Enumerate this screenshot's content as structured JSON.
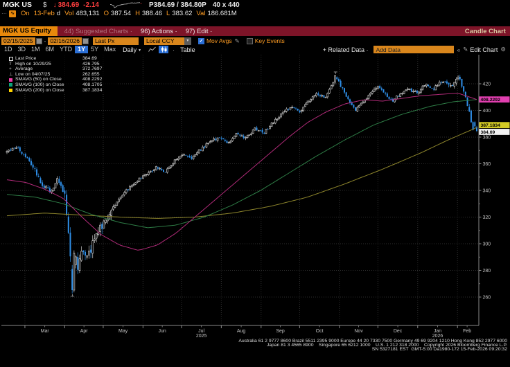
{
  "header": {
    "ticker": "MGK US",
    "currency_symbol": "$",
    "last_price": "384.69",
    "change": "-2.14",
    "bid_ask": "P384.69 / 384.80P",
    "size": "40 x 440",
    "session": {
      "prefix": "On",
      "date": "13-Feb",
      "suffix": "d",
      "vol_label": "Vol",
      "vol": "483,131",
      "o_label": "O",
      "open": "387.54",
      "h_label": "H",
      "high": "388.46",
      "l_label": "L",
      "low": "383.62",
      "val_label": "Val",
      "val": "186.681M"
    }
  },
  "icons": {
    "down_arrow": "↓",
    "dots": "⋯",
    "chart_glyph": "∿",
    "dropdown": "▼",
    "small_dropdown": "▾",
    "pencil": "✎",
    "gear": "⚙",
    "chevrons": "«",
    "check": "✓",
    "dot": "·"
  },
  "menubar": {
    "security_tab": "MGK US Equity",
    "suggested_charts": "44) Suggested Charts ·",
    "actions": "96) Actions ·",
    "edit": "97) Edit ·",
    "chart_type": "Candle Chart"
  },
  "toolbar": {
    "date_from": "02/15/2025",
    "date_to": "02/16/2026",
    "price_field": "Last Px",
    "currency": "Local CCY",
    "mov_avgs_label": "Mov Avgs",
    "key_events_label": "Key Events",
    "periods": [
      "1D",
      "3D",
      "1M",
      "6M",
      "YTD",
      "1Y",
      "5Y",
      "Max"
    ],
    "active_period": "1Y",
    "frequency": "Daily",
    "table_label": "Table",
    "related_data": "+ Related Data ·",
    "add_data_placeholder": "Add Data",
    "edit_chart": "Edit Chart"
  },
  "legend": {
    "rows": [
      {
        "marker": "square-hollow",
        "color": "#e8e8e8",
        "label": "Last Price",
        "value": "384.69"
      },
      {
        "marker": "glyph-high",
        "glyph": "T",
        "label": "High on 10/29/25",
        "value": "426.795"
      },
      {
        "marker": "glyph-avg",
        "glyph": "+",
        "label": "Average",
        "value": "372.7697"
      },
      {
        "marker": "glyph-low",
        "glyph": "⊥",
        "label": "Low on 04/07/25",
        "value": "262.655"
      },
      {
        "marker": "square",
        "color": "#f03ea8",
        "label": "SMAVG (50)  on Close",
        "value": "408.2292"
      },
      {
        "marker": "square",
        "color": "#0aa37a",
        "label": "SMAVG (100)  on Close",
        "value": "408.1705"
      },
      {
        "marker": "square",
        "color": "#ffd400",
        "label": "SMAVG (200)  on Close",
        "value": "387.1834"
      }
    ]
  },
  "chart_data": {
    "type": "candlestick",
    "title": "MGK US Equity 1Y Daily Candle Chart",
    "date_range": {
      "start": "02/15/2025",
      "end": "02/16/2026"
    },
    "trading_days": 253,
    "ylim": [
      233,
      440
    ],
    "y_ticks": [
      260,
      280,
      300,
      320,
      340,
      360,
      380,
      400,
      420
    ],
    "x_month_labels": [
      "Mar",
      "Apr",
      "May",
      "Jun",
      "Jul",
      "Aug",
      "Sep",
      "Oct",
      "Nov",
      "Dec",
      "Jan",
      "Feb"
    ],
    "year_labels": [
      {
        "text": "2025",
        "month_index": 4
      },
      {
        "text": "2026",
        "month_index": 10
      }
    ],
    "key_points": {
      "last_price": 384.69,
      "day_open": 387.54,
      "day_high": 388.46,
      "day_low": 383.62,
      "high": {
        "date": "10/29/25",
        "value": 426.795,
        "t": 0.6995
      },
      "low": {
        "date": "04/07/25",
        "value": 262.655,
        "t": 0.1393
      },
      "average": 372.7697,
      "sma50": 408.2292,
      "sma100": 408.1705,
      "sma200": 387.1834
    },
    "close_trend_anchors": [
      [
        0,
        369
      ],
      [
        0.0191,
        373
      ],
      [
        0.0383,
        366
      ],
      [
        0.0574,
        357
      ],
      [
        0.0738,
        345
      ],
      [
        0.0929,
        339
      ],
      [
        0.1066,
        348
      ],
      [
        0.123,
        338
      ],
      [
        0.1284,
        318
      ],
      [
        0.1339,
        296
      ],
      [
        0.1393,
        264
      ],
      [
        0.1448,
        293
      ],
      [
        0.1503,
        281
      ],
      [
        0.1612,
        297
      ],
      [
        0.1694,
        288
      ],
      [
        0.1831,
        300
      ],
      [
        0.1995,
        312
      ],
      [
        0.2186,
        322
      ],
      [
        0.2377,
        334
      ],
      [
        0.2568,
        341
      ],
      [
        0.2787,
        348
      ],
      [
        0.2978,
        352
      ],
      [
        0.3169,
        357
      ],
      [
        0.3361,
        354
      ],
      [
        0.3552,
        362
      ],
      [
        0.3743,
        367
      ],
      [
        0.3934,
        364
      ],
      [
        0.4126,
        371
      ],
      [
        0.4317,
        376
      ],
      [
        0.4508,
        380
      ],
      [
        0.4699,
        375
      ],
      [
        0.4891,
        383
      ],
      [
        0.5082,
        379
      ],
      [
        0.5273,
        386
      ],
      [
        0.5464,
        383
      ],
      [
        0.5656,
        391
      ],
      [
        0.5847,
        397
      ],
      [
        0.6038,
        403
      ],
      [
        0.623,
        399
      ],
      [
        0.6421,
        407
      ],
      [
        0.6612,
        413
      ],
      [
        0.6776,
        409
      ],
      [
        0.694,
        420
      ],
      [
        0.6995,
        425
      ],
      [
        0.7131,
        417
      ],
      [
        0.724,
        409
      ],
      [
        0.7404,
        400
      ],
      [
        0.7541,
        405
      ],
      [
        0.7705,
        412
      ],
      [
        0.7896,
        418
      ],
      [
        0.8033,
        413
      ],
      [
        0.8197,
        407
      ],
      [
        0.8361,
        412
      ],
      [
        0.8525,
        416
      ],
      [
        0.8743,
        413
      ],
      [
        0.8907,
        420
      ],
      [
        0.9071,
        416
      ],
      [
        0.9262,
        422
      ],
      [
        0.9454,
        419
      ],
      [
        0.9617,
        424
      ],
      [
        0.9727,
        415
      ],
      [
        0.9836,
        399
      ],
      [
        0.9918,
        385
      ],
      [
        1,
        384.7
      ]
    ],
    "sma50_anchors": [
      [
        0,
        348
      ],
      [
        0.04,
        346
      ],
      [
        0.08,
        341
      ],
      [
        0.12,
        334
      ],
      [
        0.16,
        320
      ],
      [
        0.2,
        307
      ],
      [
        0.24,
        299
      ],
      [
        0.28,
        295
      ],
      [
        0.32,
        299
      ],
      [
        0.36,
        308
      ],
      [
        0.4,
        320
      ],
      [
        0.44,
        332
      ],
      [
        0.48,
        344
      ],
      [
        0.52,
        356
      ],
      [
        0.56,
        368
      ],
      [
        0.6,
        380
      ],
      [
        0.64,
        391
      ],
      [
        0.68,
        399
      ],
      [
        0.72,
        405
      ],
      [
        0.76,
        408
      ],
      [
        0.8,
        407
      ],
      [
        0.84,
        409
      ],
      [
        0.88,
        411
      ],
      [
        0.92,
        412
      ],
      [
        0.96,
        413
      ],
      [
        1,
        408.23
      ]
    ],
    "sma100_anchors": [
      [
        0,
        337
      ],
      [
        0.06,
        335
      ],
      [
        0.12,
        330
      ],
      [
        0.18,
        322
      ],
      [
        0.24,
        316
      ],
      [
        0.3,
        312
      ],
      [
        0.36,
        314
      ],
      [
        0.42,
        320
      ],
      [
        0.48,
        329
      ],
      [
        0.54,
        340
      ],
      [
        0.6,
        353
      ],
      [
        0.66,
        366
      ],
      [
        0.72,
        378
      ],
      [
        0.78,
        389
      ],
      [
        0.84,
        397
      ],
      [
        0.9,
        403
      ],
      [
        0.95,
        406.5
      ],
      [
        1,
        408.17
      ]
    ],
    "sma200_anchors": [
      [
        0,
        321
      ],
      [
        0.08,
        323
      ],
      [
        0.16,
        321.5
      ],
      [
        0.24,
        320
      ],
      [
        0.32,
        319
      ],
      [
        0.4,
        320
      ],
      [
        0.48,
        323
      ],
      [
        0.56,
        328
      ],
      [
        0.64,
        335
      ],
      [
        0.72,
        345
      ],
      [
        0.8,
        356
      ],
      [
        0.88,
        368
      ],
      [
        0.94,
        378
      ],
      [
        1,
        387.18
      ]
    ],
    "volatility_zones": [
      {
        "to": 0.05,
        "vol": 1.8
      },
      {
        "to": 0.12,
        "vol": 2.8
      },
      {
        "to": 0.23,
        "vol": 5.2
      },
      {
        "to": 0.94,
        "vol": 1.8
      },
      {
        "to": 1.01,
        "vol": 2.8
      }
    ],
    "axis_price_labels": [
      {
        "text": "408.2292",
        "value": 408.2292,
        "bg": "#e23fb0",
        "fg": "#000"
      },
      {
        "text": "387.1834",
        "value": 387.1834,
        "bg": "#d3ca25",
        "fg": "#000"
      },
      {
        "text": "384.69",
        "value": 384.69,
        "bg": "#f2f2f2",
        "fg": "#000"
      }
    ],
    "colors": {
      "up_candle": "#c9c9c9",
      "down_candle": "#2f8fe8",
      "sma50_line": "#b02a78",
      "sma100_line": "#2e7d46",
      "sma200_line": "#8e862c",
      "grid": "#2e2e2e",
      "axis": "#8a8a8a",
      "tick_text": "#c4c4c4",
      "accent_amber": "#e8890c",
      "menubar_red": "#7d1428",
      "price_red": "#ff3f3f",
      "select_blue": "#2b6fd6"
    }
  },
  "footer": {
    "line1": "Australia 61 2 9777 8600 Brazil 5511 2395 9000 Europe 44 20 7330 7500 Germany 49 69 9204 1210 Hong Kong 852 2977 6000",
    "line2": "Japan 81 3 4565 8900    Singapore 65 6212 1000    U.S. 1 212 318 2000    Copyright 2026 Bloomberg Finance L.P.",
    "line3": "SN 5327181 EST  GMT-5:00 Da1980-172 15-Feb-2026 09:20:32"
  }
}
